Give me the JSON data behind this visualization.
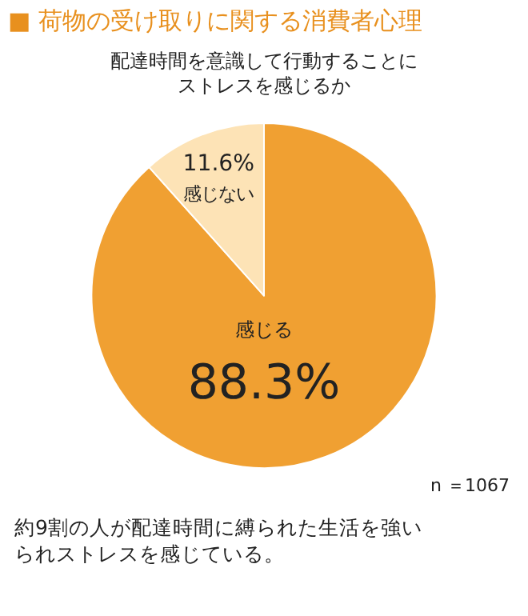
{
  "chart_data": {
    "type": "pie",
    "title": "■ 荷物の受け取りに関する消費者心理",
    "subtitle": "配達時間を意識して行動することにストレスを感じるか",
    "categories": [
      "感じる",
      "感じない"
    ],
    "values": [
      88.3,
      11.6
    ],
    "value_labels": [
      "88.3%",
      "11.6%"
    ],
    "colors": [
      "#f0a032",
      "#fde3b6"
    ],
    "legend": false,
    "annotations": [
      "n ＝1067",
      "約9割の人が配達時間に縛られた生活を強いられストレスを感じている。"
    ]
  }
}
